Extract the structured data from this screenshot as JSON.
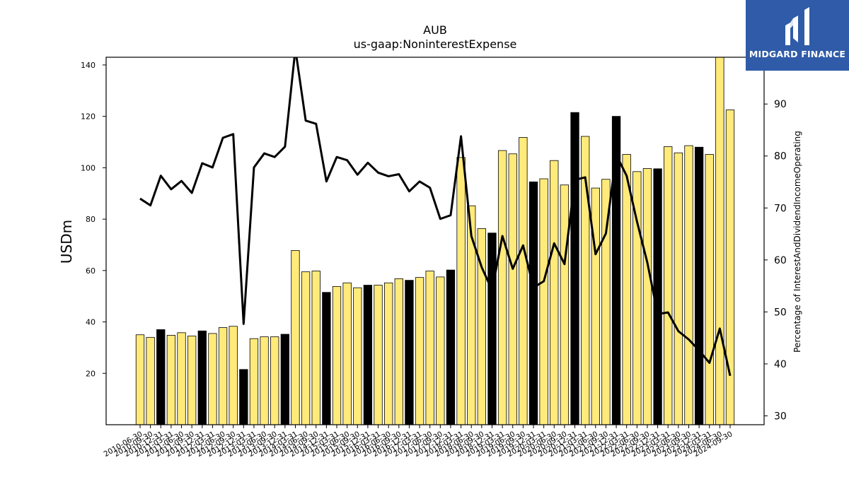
{
  "chart_data": {
    "type": "bar+line",
    "title": "AUB",
    "subtitle": "us-gaap:NoninterestExpense",
    "ylabel_left": "USDm",
    "ylabel_right": "Percentage of InterestAndDividendIncomeOperating",
    "ylim_left": [
      0,
      143
    ],
    "ylim_right": [
      28.3,
      99
    ],
    "yticks_left": [
      20,
      40,
      60,
      80,
      100,
      120,
      140
    ],
    "yticks_right": [
      30,
      40,
      50,
      60,
      70,
      80,
      90
    ],
    "x_tick_labels": [
      "2010-06-30",
      "2010-09-30",
      "2010-12-31",
      "2011-03-31",
      "2011-06-30",
      "2011-09-30",
      "2011-12-31",
      "2012-03-31",
      "2012-06-30",
      "2012-09-30",
      "2012-12-31",
      "2013-03-31",
      "2013-06-30",
      "2013-09-30",
      "2013-12-31",
      "2014-03-31",
      "2014-06-30",
      "2014-09-30",
      "2014-12-31",
      "2015-03-31",
      "2015-06-30",
      "2015-09-30",
      "2015-12-31",
      "2016-03-31",
      "2016-06-30",
      "2016-09-30",
      "2016-12-31",
      "2017-03-31",
      "2017-06-30",
      "2017-09-30",
      "2017-12-31",
      "2018-03-31",
      "2018-06-30",
      "2018-09-30",
      "2018-12-31",
      "2019-03-31",
      "2019-06-30",
      "2019-09-30",
      "2019-12-31",
      "2020-03-31",
      "2020-06-30",
      "2020-09-30",
      "2020-12-31",
      "2021-03-31",
      "2021-06-30",
      "2021-09-30",
      "2021-12-31",
      "2022-03-31",
      "2022-06-30",
      "2022-09-30",
      "2022-12-31",
      "2023-03-31",
      "2023-06-30",
      "2023-09-30",
      "2023-12-31",
      "2024-03-31",
      "2024-06-30",
      "2024-09-30"
    ],
    "bars": {
      "name": "NoninterestExpense",
      "values": [
        35,
        34,
        37,
        34.8,
        35.8,
        34.5,
        36.5,
        35.5,
        37.8,
        38.3,
        21.5,
        33.5,
        34.2,
        34.2,
        35.2,
        67.8,
        59.5,
        59.8,
        51.5,
        53.8,
        55.2,
        53.3,
        54.3,
        54.3,
        55.2,
        56.8,
        56.2,
        57.3,
        59.8,
        57.5,
        60.2,
        104,
        85.2,
        76.3,
        74.6,
        106.7,
        105.4,
        111.8,
        94.5,
        95.7,
        102.8,
        93.3,
        121.5,
        112.2,
        92.1,
        95.5,
        120,
        105.2,
        98.5,
        99.7,
        99.6,
        108.2,
        105.8,
        108.6,
        108,
        105.2,
        143,
        122.5
      ],
      "q4_flags": [
        0,
        0,
        1,
        0,
        0,
        0,
        1,
        0,
        0,
        0,
        1,
        0,
        0,
        0,
        1,
        0,
        0,
        0,
        1,
        0,
        0,
        0,
        1,
        0,
        0,
        0,
        1,
        0,
        0,
        0,
        1,
        0,
        0,
        0,
        1,
        0,
        0,
        0,
        1,
        0,
        0,
        0,
        1,
        0,
        0,
        0,
        1,
        0,
        0,
        0,
        1,
        0,
        0,
        0,
        1,
        0,
        0,
        0
      ],
      "colors": {
        "quarter": "#ffea7a",
        "q4": "#000000",
        "edge": "#000000"
      }
    },
    "line": {
      "name": "Percentage of InterestAndDividendIncomeOperating",
      "values": [
        71.8,
        70.5,
        76.2,
        73.6,
        75.2,
        72.9,
        78.6,
        77.8,
        83.5,
        84.2,
        47.7,
        77.8,
        80.5,
        79.8,
        81.8,
        100.6,
        86.8,
        86.2,
        75.1,
        79.8,
        79.2,
        76.4,
        78.7,
        76.8,
        76.1,
        76.5,
        73.2,
        75.1,
        73.9,
        67.9,
        68.6,
        83.8,
        64.6,
        58.6,
        54.2,
        64.6,
        58.3,
        62.8,
        54.7,
        55.9,
        63.2,
        59.2,
        75.4,
        75.9,
        61.1,
        65.1,
        80.2,
        76.2,
        67.4,
        59.5,
        49.6,
        49.9,
        46.3,
        44.7,
        42.6,
        40.2,
        46.8,
        37.7
      ],
      "color": "#000000"
    },
    "grid": false,
    "legend": "none"
  },
  "logo": {
    "text": "MIDGARD FINANCE",
    "bg_color": "#2f5ba8",
    "icon": "midgard-logo-icon"
  }
}
